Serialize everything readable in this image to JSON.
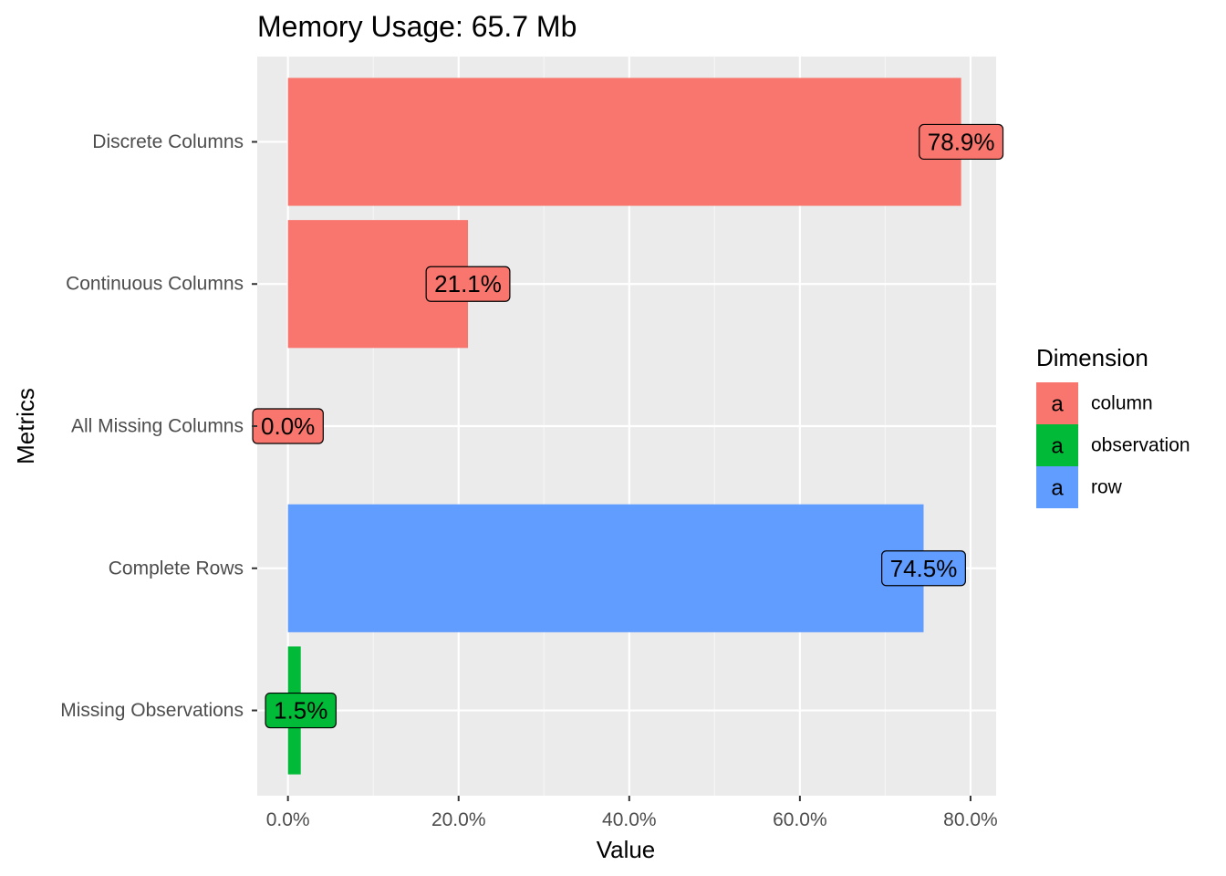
{
  "chart_data": {
    "type": "bar",
    "orientation": "horizontal",
    "title": "Memory Usage: 65.7 Mb",
    "xlabel": "Value",
    "ylabel": "Metrics",
    "xlim": [
      -0.036,
      0.83
    ],
    "xticks": [
      0,
      0.2,
      0.4,
      0.6,
      0.8
    ],
    "xtick_labels": [
      "0.0%",
      "20.0%",
      "40.0%",
      "60.0%",
      "80.0%"
    ],
    "grid": true,
    "legend": {
      "title": "Dimension",
      "position": "right",
      "key_glyph": "a",
      "entries": [
        {
          "label": "column",
          "color": "#F8766D"
        },
        {
          "label": "observation",
          "color": "#00BA38"
        },
        {
          "label": "row",
          "color": "#619CFF"
        }
      ]
    },
    "bars": [
      {
        "category": "Discrete Columns",
        "value": 0.789,
        "dimension": "column",
        "label": "78.9%"
      },
      {
        "category": "Continuous Columns",
        "value": 0.211,
        "dimension": "column",
        "label": "21.1%"
      },
      {
        "category": "All Missing Columns",
        "value": 0.0,
        "dimension": "column",
        "label": "0.0%"
      },
      {
        "category": "Complete Rows",
        "value": 0.745,
        "dimension": "row",
        "label": "74.5%"
      },
      {
        "category": "Missing Observations",
        "value": 0.015,
        "dimension": "observation",
        "label": "1.5%"
      }
    ],
    "colors": {
      "panel_background": "#EBEBEB",
      "grid_major": "#FFFFFF",
      "grid_minor": "#F5F5F5",
      "tick": "#333333"
    }
  }
}
